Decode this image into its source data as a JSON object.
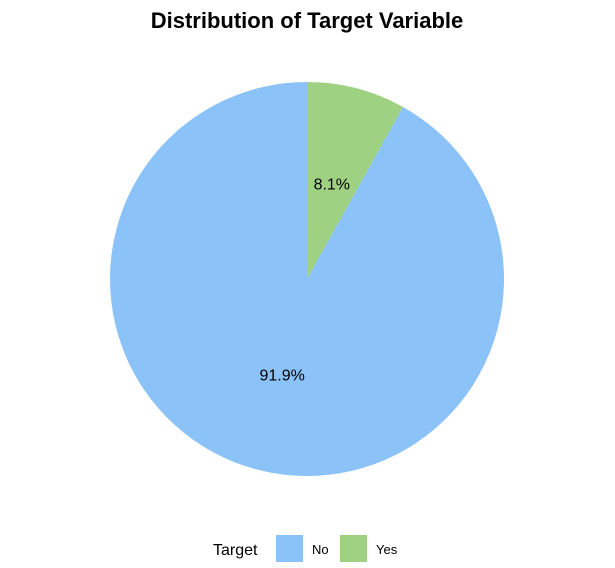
{
  "chart_data": {
    "type": "pie",
    "title": "Distribution of Target Variable",
    "slices": [
      {
        "category": "Yes",
        "value": 8.1,
        "label": "8.1%",
        "color": "#9fd182"
      },
      {
        "category": "No",
        "value": 91.9,
        "label": "91.9%",
        "color": "#8bc2f7"
      }
    ],
    "start_angle_deg": 0,
    "direction": "clockwise",
    "legend": {
      "title": "Target",
      "position": "bottom",
      "items": [
        {
          "label": "No",
          "color": "#8bc2f7"
        },
        {
          "label": "Yes",
          "color": "#9fd182"
        }
      ]
    }
  }
}
